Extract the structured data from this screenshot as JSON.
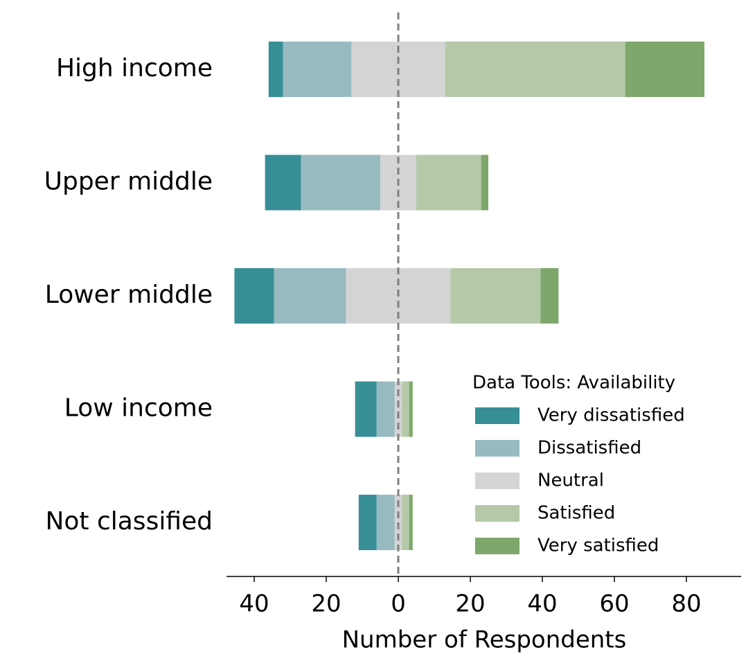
{
  "chart_data": {
    "type": "diverging-bar",
    "xlabel": "Number of Respondents",
    "categories": [
      "High income",
      "Upper middle",
      "Lower middle",
      "Low income",
      "Not classified"
    ],
    "series": [
      {
        "name": "Very dissatisfied",
        "color": "#388e96",
        "values": [
          4,
          10,
          11,
          6,
          5
        ]
      },
      {
        "name": "Dissatisfied",
        "color": "#97bac0",
        "values": [
          19,
          22,
          20,
          5,
          5
        ]
      },
      {
        "name": "Neutral",
        "color": "#d4d4d4",
        "values": [
          26,
          10,
          29,
          2,
          2
        ]
      },
      {
        "name": "Satisfied",
        "color": "#b5c9a9",
        "values": [
          50,
          18,
          25,
          2,
          2
        ]
      },
      {
        "name": "Very satisfied",
        "color": "#7ea76c",
        "values": [
          22,
          2,
          5,
          1,
          1
        ]
      }
    ],
    "xlim": [
      -47.7,
      95.2
    ],
    "xticks": [
      {
        "value": -40,
        "label": "40"
      },
      {
        "value": -20,
        "label": "20"
      },
      0,
      20,
      40,
      60,
      80
    ],
    "legend_title": "Data Tools: Availability",
    "legend": "lower right"
  }
}
